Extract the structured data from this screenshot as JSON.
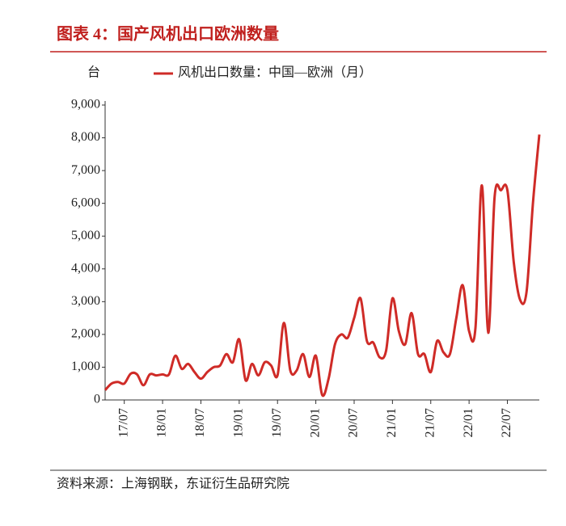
{
  "chart_data": {
    "type": "line",
    "title": "图表 4：国产风机出口欧洲数量",
    "unit_label": "台",
    "source": "资料来源：上海钢联，东证衍生品研究院",
    "categories": [
      null,
      null,
      null,
      "17/07",
      null,
      null,
      null,
      null,
      null,
      "18/01",
      null,
      null,
      null,
      null,
      null,
      "18/07",
      null,
      null,
      null,
      null,
      null,
      "19/01",
      null,
      null,
      null,
      null,
      null,
      "19/07",
      null,
      null,
      null,
      null,
      null,
      "20/01",
      null,
      null,
      null,
      null,
      null,
      "20/07",
      null,
      null,
      null,
      null,
      null,
      "21/01",
      null,
      null,
      null,
      null,
      null,
      "21/07",
      null,
      null,
      null,
      null,
      null,
      "22/01",
      null,
      null,
      null,
      null,
      null,
      "22/07",
      null,
      null,
      null,
      null,
      null
    ],
    "series": [
      {
        "name": "风机出口数量：中国—欧洲（月）",
        "color": "#cf2b27",
        "values": [
          300,
          500,
          550,
          500,
          800,
          780,
          450,
          780,
          750,
          780,
          780,
          1350,
          950,
          1100,
          850,
          650,
          850,
          1000,
          1050,
          1400,
          1150,
          1850,
          600,
          1100,
          750,
          1150,
          1050,
          750,
          2350,
          900,
          900,
          1400,
          700,
          1350,
          150,
          650,
          1700,
          2000,
          1900,
          2500,
          3100,
          1800,
          1750,
          1300,
          1500,
          3100,
          2100,
          1700,
          2650,
          1400,
          1400,
          850,
          1800,
          1450,
          1400,
          2500,
          3500,
          2100,
          2200,
          6550,
          2050,
          6200,
          6400,
          6400,
          4200,
          3050,
          3300,
          6000,
          8100
        ]
      }
    ],
    "ylim": [
      0,
      9000
    ],
    "yticks": [
      0,
      {
        "value": 1000,
        "label": "1,000"
      },
      {
        "value": 2000,
        "label": "2,000"
      },
      {
        "value": 3000,
        "label": "3,000"
      },
      {
        "value": 4000,
        "label": "4,000"
      },
      {
        "value": 5000,
        "label": "5,000"
      },
      {
        "value": 6000,
        "label": "6,000"
      },
      {
        "value": 7000,
        "label": "7,000"
      },
      {
        "value": 8000,
        "label": "8,000"
      },
      {
        "value": 9000,
        "label": "9,000"
      }
    ]
  }
}
